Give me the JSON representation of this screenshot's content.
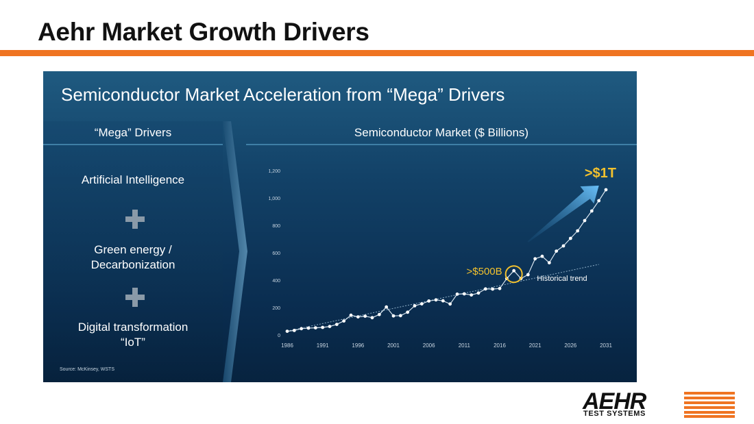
{
  "slide": {
    "title": "Aehr Market Growth Drivers",
    "accent_color": "#ef7422"
  },
  "panel": {
    "title": "Semiconductor Market Acceleration from “Mega” Drivers",
    "left_header": "“Mega” Drivers",
    "drivers": [
      {
        "line1": "Artificial Intelligence",
        "line2": ""
      },
      {
        "line1": "Green energy /",
        "line2": "Decarbonization"
      },
      {
        "line1": "Digital transformation",
        "line2": "“IoT”"
      }
    ],
    "separator_icon": "plus-icon",
    "right_header": "Semiconductor Market ($ Billions)",
    "source": "Source: McKinsey, WSTS"
  },
  "logo": {
    "name": "AEHR",
    "sub": "TEST SYSTEMS"
  },
  "chart_data": {
    "type": "line",
    "title": "Semiconductor Market ($ Billions)",
    "xlabel": "",
    "ylabel": "",
    "x_ticks": [
      "1986",
      "1991",
      "1996",
      "2001",
      "2006",
      "2011",
      "2016",
      "2021",
      "2026",
      "2031"
    ],
    "y_ticks": [
      "0",
      "200",
      "400",
      "600",
      "800",
      "1,000",
      "1,200"
    ],
    "xlim": [
      1986,
      2031
    ],
    "ylim": [
      0,
      1200
    ],
    "grid": false,
    "series": [
      {
        "name": "",
        "color": "#ffffff",
        "x": [
          1986,
          1987,
          1988,
          1989,
          1990,
          1991,
          1992,
          1993,
          1994,
          1995,
          1996,
          1997,
          1998,
          1999,
          2000,
          2001,
          2002,
          2003,
          2004,
          2005,
          2006,
          2007,
          2008,
          2009,
          2010,
          2011,
          2012,
          2013,
          2014,
          2015,
          2016,
          2017,
          2018,
          2019,
          2020,
          2021,
          2022,
          2023,
          2024,
          2025,
          2026,
          2027,
          2028,
          2029,
          2030,
          2031
        ],
        "y": [
          27,
          33,
          46,
          50,
          52,
          55,
          62,
          77,
          102,
          144,
          132,
          137,
          126,
          149,
          204,
          139,
          141,
          166,
          213,
          227,
          248,
          256,
          249,
          226,
          298,
          300,
          292,
          306,
          336,
          335,
          339,
          412,
          469,
          412,
          440,
          556,
          574,
          527,
          612,
          650,
          705,
          760,
          835,
          905,
          980,
          1060
        ]
      }
    ],
    "trend_line": {
      "label": "Historical trend",
      "x": [
        1986,
        2030
      ],
      "y": [
        28,
        515
      ],
      "color": "#8fb0c8"
    },
    "arrow": {
      "x": [
        2020,
        2030
      ],
      "y": [
        680,
        1090
      ]
    },
    "annotations": [
      {
        "text": ">$500B",
        "x": 2018,
        "y": 469,
        "circled": true,
        "color": "#f2c12e"
      },
      {
        "text": ">$1T",
        "x": 2031,
        "y": 1060,
        "color": "#f2c12e"
      },
      {
        "text": "Historical trend",
        "x": 2025,
        "y": 410,
        "color": "#ffffff"
      }
    ]
  }
}
